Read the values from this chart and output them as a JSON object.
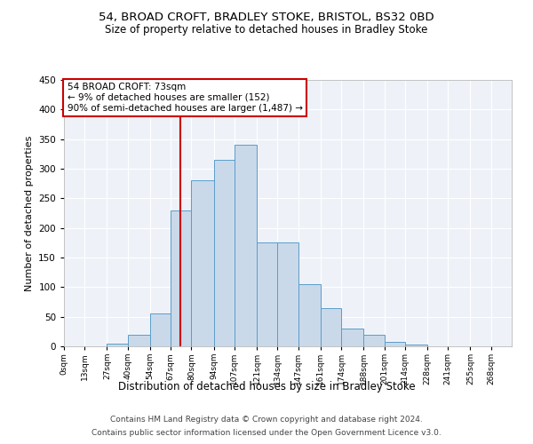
{
  "title1": "54, BROAD CROFT, BRADLEY STOKE, BRISTOL, BS32 0BD",
  "title2": "Size of property relative to detached houses in Bradley Stoke",
  "xlabel": "Distribution of detached houses by size in Bradley Stoke",
  "ylabel": "Number of detached properties",
  "footer1": "Contains HM Land Registry data © Crown copyright and database right 2024.",
  "footer2": "Contains public sector information licensed under the Open Government Licence v3.0.",
  "annotation_line1": "54 BROAD CROFT: 73sqm",
  "annotation_line2": "← 9% of detached houses are smaller (152)",
  "annotation_line3": "90% of semi-detached houses are larger (1,487) →",
  "property_sqm": 73,
  "bar_color": "#c9d9ea",
  "bar_edge_color": "#5b9dc9",
  "vline_color": "#cc0000",
  "annotation_box_edge": "#cc0000",
  "background_color": "#eef2f8",
  "tick_labels": [
    "0sqm",
    "13sqm",
    "27sqm",
    "40sqm",
    "54sqm",
    "67sqm",
    "80sqm",
    "94sqm",
    "107sqm",
    "121sqm",
    "134sqm",
    "147sqm",
    "161sqm",
    "174sqm",
    "188sqm",
    "201sqm",
    "214sqm",
    "228sqm",
    "241sqm",
    "255sqm",
    "268sqm"
  ],
  "bar_heights": [
    0,
    0,
    5,
    20,
    55,
    230,
    280,
    315,
    340,
    175,
    175,
    105,
    65,
    30,
    20,
    7,
    3,
    0,
    0,
    0,
    0
  ],
  "bin_edges": [
    0,
    13,
    27,
    40,
    54,
    67,
    80,
    94,
    107,
    121,
    134,
    147,
    161,
    174,
    188,
    201,
    214,
    228,
    241,
    255,
    268
  ],
  "ylim": [
    0,
    450
  ],
  "yticks": [
    0,
    50,
    100,
    150,
    200,
    250,
    300,
    350,
    400,
    450
  ]
}
